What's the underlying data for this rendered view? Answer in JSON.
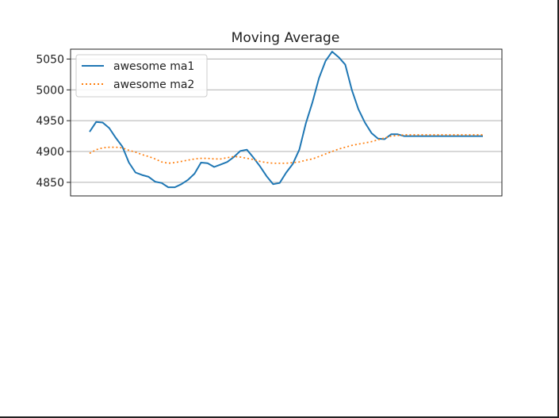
{
  "chart_data": {
    "type": "line",
    "title": "Moving Average",
    "xlabel": "",
    "ylabel": "",
    "x_ticks_visible": false,
    "ylim": [
      4828,
      5066
    ],
    "yticks": [
      4850,
      4900,
      4950,
      5000,
      5050
    ],
    "ytick_labels": [
      "4850",
      "4900",
      "4950",
      "5000",
      "5050"
    ],
    "grid": "horizontal",
    "legend": "upper-left",
    "x": [
      0,
      1,
      2,
      3,
      4,
      5,
      6,
      7,
      8,
      9,
      10,
      11,
      12,
      13,
      14,
      15,
      16,
      17,
      18,
      19,
      20,
      21,
      22,
      23,
      24,
      25,
      26,
      27,
      28,
      29,
      30,
      31,
      32,
      33,
      34,
      35,
      36,
      37,
      38,
      39,
      40,
      41,
      42,
      43,
      44,
      45,
      46,
      47,
      48,
      49,
      50,
      51,
      52,
      53,
      54,
      55,
      56,
      57,
      58,
      59,
      60
    ],
    "series": [
      {
        "name": "awesome ma1",
        "color": "#1f77b4",
        "style": "solid",
        "values": [
          4932,
          4948,
          4947,
          4938,
          4922,
          4908,
          4882,
          4866,
          4862,
          4859,
          4851,
          4849,
          4842,
          4842,
          4847,
          4854,
          4864,
          4882,
          4881,
          4875,
          4879,
          4883,
          4891,
          4901,
          4903,
          4890,
          4876,
          4860,
          4847,
          4849,
          4866,
          4880,
          4903,
          4946,
          4980,
          5019,
          5047,
          5062,
          5053,
          5041,
          5000,
          4969,
          4947,
          4930,
          4921,
          4920,
          4928,
          4928,
          4925,
          4925,
          4925,
          4925,
          4925,
          4925,
          4925,
          4925,
          4925,
          4925,
          4925,
          4925,
          4925
        ]
      },
      {
        "name": "awesome ma2",
        "color": "#ff7f0e",
        "style": "dotted",
        "values": [
          4897,
          4903,
          4906,
          4907,
          4907,
          4906,
          4902,
          4899,
          4895,
          4892,
          4888,
          4883,
          4881,
          4882,
          4884,
          4886,
          4888,
          4889,
          4889,
          4888,
          4888,
          4890,
          4892,
          4891,
          4889,
          4887,
          4884,
          4882,
          4881,
          4881,
          4881,
          4882,
          4883,
          4886,
          4888,
          4892,
          4896,
          4900,
          4904,
          4907,
          4910,
          4912,
          4914,
          4916,
          4919,
          4922,
          4925,
          4926,
          4927,
          4927,
          4927,
          4927,
          4927,
          4927,
          4927,
          4927,
          4927,
          4927,
          4927,
          4927,
          4927
        ]
      }
    ]
  }
}
